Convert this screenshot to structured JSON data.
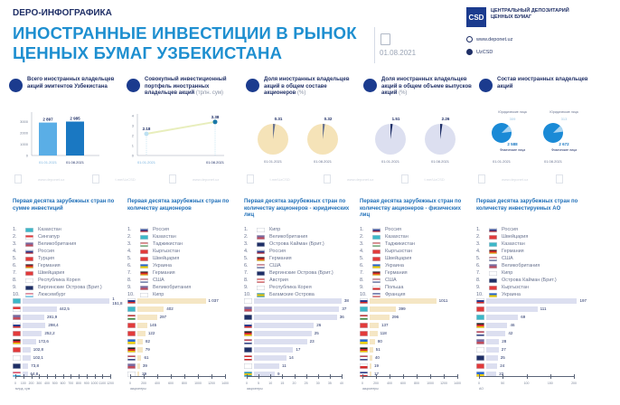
{
  "header": {
    "kicker": "DEPO-ИНФОГРАФИКА",
    "title_line1": "ИНОСТРАННЫЕ ИНВЕСТИЦИИ В РЫНОК",
    "title_line2": "ЦЕННЫХ БУМАГ УЗБЕКИСТАНА",
    "date": "01.08.2021",
    "logo_text": "CSD",
    "org_line1": "ЦЕНТРАЛЬНЫЙ ДЕПОЗИТАРИЙ",
    "org_line2": "ЦЕННЫХ БУМАГ",
    "website": "www.deponet.uz",
    "telegram": "UzCSD"
  },
  "kpis": [
    {
      "title": "Всего иностранных владельцев акций эмитентов Узбекистана",
      "type": "bar",
      "dates": [
        "01.01.2021",
        "01.08.2021"
      ],
      "values": [
        2897,
        2985
      ],
      "labels": [
        "2 897",
        "2 985"
      ],
      "yticks": [
        "0",
        "1000",
        "2000",
        "3000"
      ],
      "ymax": 3500,
      "colors": [
        "#5aaee6",
        "#1a78c2"
      ]
    },
    {
      "title": "Совокупный инвестиционный портфель иностранных владельцев акций",
      "unit": "(трлн. сум)",
      "type": "line",
      "dates": [
        "01.01.2021",
        "01.08.2021"
      ],
      "values": [
        2.18,
        3.38
      ],
      "labels": [
        "2.18",
        "3.38"
      ],
      "yticks": [
        "0",
        "1",
        "2",
        "3",
        "4"
      ],
      "ymax": 4
    },
    {
      "title": "Доля иностранных владельцев акций в общем составе акционеров",
      "unit": "(%)",
      "type": "pie",
      "dates": [
        "01.01.2021",
        "01.08.2021"
      ],
      "values": [
        0.31,
        0.32
      ],
      "labels": [
        "0.31",
        "0.32"
      ],
      "fill": "#f5e3b8",
      "slice": "#6a7490"
    },
    {
      "title": "Доля иностранных владельцев акций в общем объеме выпусков акций",
      "unit": "(%)",
      "type": "pie",
      "dates": [
        "01.01.2021",
        "01.08.2021"
      ],
      "values": [
        1.51,
        2.26
      ],
      "labels": [
        "1.51",
        "2.26"
      ],
      "fill": "#dcdff0",
      "slice": "#1f2f66"
    },
    {
      "title": "Состав иностранных владельцев акций",
      "type": "composition",
      "dates": [
        "01.01.2021",
        "01.08.2021"
      ],
      "legal_label": "Юридические лица",
      "physical_label": "Физические лица",
      "legal": [
        309,
        313
      ],
      "physical": [
        2588,
        2672
      ],
      "legal_labels": [
        "309",
        "313"
      ],
      "physical_labels": [
        "2 588",
        "2 672"
      ],
      "color_physical": "#1a8ad6",
      "color_legal": "#a8d4f2"
    }
  ],
  "watermark": {
    "items": [
      "www.deponet.uz",
      "t.me/UzCSD",
      "www.deponet.uz",
      "t.me/UzCSD",
      "www.deponet.uz",
      "t.me/UzCSD",
      "www.deponet.uz"
    ]
  },
  "chart_data": [
    {
      "type": "bar",
      "title": "Первая десятка зарубежных стран по сумме инвестиций",
      "xlabel": "млрд. сум",
      "categories": [
        "Казахстан",
        "Сингапур",
        "Великобритания",
        "Россия",
        "Турция",
        "Германия",
        "Швейцария",
        "Республика Корея",
        "Виргинские Острова (Брит.)",
        "Люксембург"
      ],
      "values": [
        1151.8,
        442.5,
        281.9,
        298.4,
        252.2,
        172.6,
        102.8,
        102.1,
        73.8,
        64.8
      ],
      "value_labels": [
        "1 151,8",
        "442,5",
        "281,9",
        "298,4",
        "252,2",
        "172,6",
        "102,8",
        "102,1",
        "73,8",
        "64,8"
      ],
      "xticks": [
        "0",
        "100",
        "200",
        "300",
        "400",
        "500",
        "600",
        "700",
        "800",
        "900",
        "1000",
        "1100",
        "1200"
      ],
      "xlim": [
        0,
        1200
      ],
      "bar_color": "#dcdff0"
    },
    {
      "type": "bar",
      "title": "Первая десятка зарубежных стран по количеству акционеров",
      "xlabel": "акционеры",
      "categories": [
        "Россия",
        "Казахстан",
        "Таджикистан",
        "Кыргызстан",
        "Швейцария",
        "Украина",
        "Германия",
        "США",
        "Великобритания",
        "Кипр"
      ],
      "values": [
        1037,
        402,
        297,
        145,
        122,
        82,
        79,
        61,
        39,
        29
      ],
      "value_labels": [
        "1 037",
        "402",
        "297",
        "145",
        "122",
        "82",
        "79",
        "61",
        "39",
        "29"
      ],
      "xticks": [
        "0",
        "200",
        "400",
        "600",
        "800",
        "1000",
        "1200",
        "1400"
      ],
      "xlim": [
        0,
        1400
      ],
      "bar_color": "#f5e6c4"
    },
    {
      "type": "bar",
      "title": "Первая десятка зарубежных стран по количеству акционеров - юридических лиц",
      "xlabel": "акционеры",
      "categories": [
        "Кипр",
        "Великобритания",
        "Острова Кайман (Брит.)",
        "Россия",
        "Германия",
        "США",
        "Виргинские Острова (Брит.)",
        "Австрия",
        "Республика Корея",
        "Багамские Острова"
      ],
      "values": [
        38,
        37,
        36,
        26,
        25,
        23,
        17,
        14,
        11,
        9
      ],
      "value_labels": [
        "38",
        "37",
        "36",
        "26",
        "25",
        "23",
        "17",
        "14",
        "11",
        "9"
      ],
      "xticks": [
        "0",
        "5",
        "10",
        "15",
        "20",
        "25",
        "30",
        "35",
        "40"
      ],
      "xlim": [
        0,
        40
      ],
      "bar_color": "#dcdff0"
    },
    {
      "type": "bar",
      "title": "Первая десятка зарубежных стран по количеству акционеров - физических лиц",
      "xlabel": "акционеры",
      "categories": [
        "Россия",
        "Казахстан",
        "Таджикистан",
        "Кыргызстан",
        "Швейцария",
        "Украина",
        "Германия",
        "США",
        "Польша",
        "Франция"
      ],
      "values": [
        1011,
        399,
        296,
        137,
        118,
        80,
        51,
        40,
        19,
        17
      ],
      "value_labels": [
        "1011",
        "399",
        "296",
        "137",
        "118",
        "80",
        "51",
        "40",
        "19",
        "17"
      ],
      "xticks": [
        "0",
        "200",
        "400",
        "600",
        "800",
        "1000",
        "1200",
        "1400"
      ],
      "xlim": [
        0,
        1400
      ],
      "bar_color": "#f5e6c4"
    },
    {
      "type": "bar",
      "title": "Первая десятка зарубежных стран по количеству инвестируемых АО",
      "xlabel": "АО",
      "categories": [
        "Россия",
        "Швейцария",
        "Казахстан",
        "Германия",
        "США",
        "Великобритания",
        "Кипр",
        "Острова Кайман (Брит.)",
        "Кыргызстан",
        "Украина"
      ],
      "values": [
        197,
        111,
        69,
        46,
        42,
        28,
        27,
        25,
        24,
        22
      ],
      "value_labels": [
        "197",
        "111",
        "69",
        "46",
        "42",
        "28",
        "27",
        "25",
        "24",
        "22"
      ],
      "xticks": [
        "0",
        "50",
        "100",
        "150",
        "200"
      ],
      "xlim": [
        0,
        200
      ],
      "bar_color": "#dcdff0"
    }
  ],
  "flags": {
    "Казахстан": [
      "#3cb8c8",
      "#3cb8c8"
    ],
    "Сингапур": [
      "#e23a3a",
      "#ffffff"
    ],
    "Великобритания": [
      "#7a6aa0",
      "#c24a5a"
    ],
    "Россия": [
      "#ffffff",
      "#2a3a8a",
      "#d62a2a"
    ],
    "Турция": [
      "#e23a3a",
      "#e23a3a"
    ],
    "Германия": [
      "#222222",
      "#d62a2a",
      "#f2c400"
    ],
    "Швейцария": [
      "#e23a3a",
      "#e23a3a"
    ],
    "Республика Корея": [
      "#ffffff",
      "#ffffff"
    ],
    "Виргинские Острова (Брит.)": [
      "#1f2f66",
      "#1f2f66"
    ],
    "Люксембург": [
      "#e8506a",
      "#ffffff",
      "#3cb8e8"
    ],
    "Таджикистан": [
      "#c83a3a",
      "#ffffff",
      "#3a8a3a"
    ],
    "Кыргызстан": [
      "#e23a3a",
      "#e23a3a"
    ],
    "Украина": [
      "#2a6ad0",
      "#f2d000"
    ],
    "США": [
      "#c24a5a",
      "#ffffff",
      "#3a4a8a"
    ],
    "Кипр": [
      "#ffffff",
      "#ffffff"
    ],
    "Острова Кайман (Брит.)": [
      "#1f2f66",
      "#1f2f66"
    ],
    "Австрия": [
      "#d62a2a",
      "#ffffff",
      "#d62a2a"
    ],
    "Багамские Острова": [
      "#2aa0b8",
      "#f2c400",
      "#2aa0b8"
    ],
    "Польша": [
      "#ffffff",
      "#d62a2a"
    ],
    "Франция": [
      "#2a3a8a",
      "#ffffff",
      "#d62a2a"
    ]
  }
}
